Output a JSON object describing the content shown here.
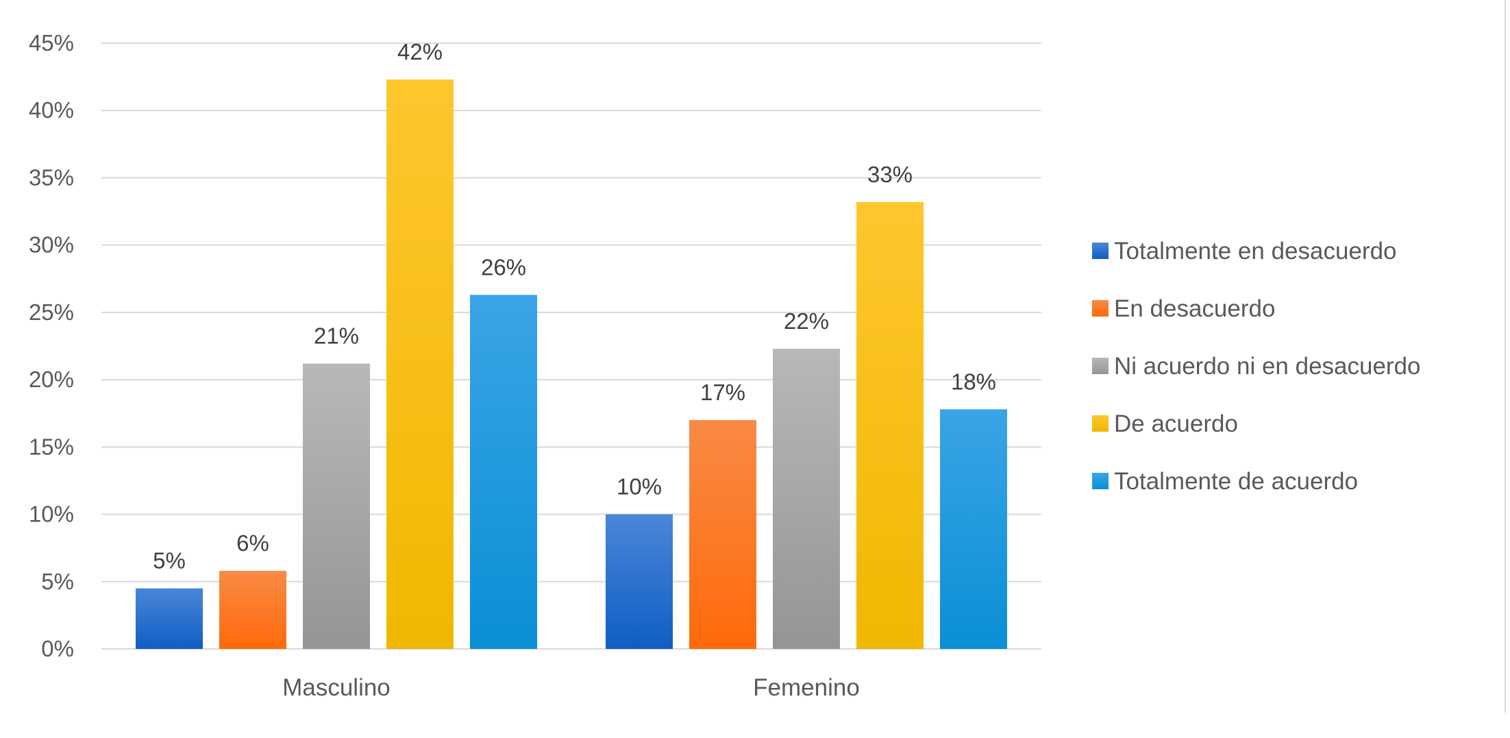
{
  "chart_data": {
    "type": "bar",
    "categories": [
      "Masculino",
      "Femenino"
    ],
    "series": [
      {
        "name": "Totalmente en desacuerdo",
        "values": [
          4.5,
          10
        ],
        "label": [
          "5%",
          "10%"
        ],
        "color_top": "#4a86d8",
        "color_bottom": "#0f5ec4"
      },
      {
        "name": "En desacuerdo",
        "values": [
          5.8,
          17
        ],
        "label": [
          "6%",
          "17%"
        ],
        "color_top": "#f98a45",
        "color_bottom": "#ff6a0a"
      },
      {
        "name": "Ni acuerdo ni en desacuerdo",
        "values": [
          21.2,
          22.3
        ],
        "label": [
          "21%",
          "22%"
        ],
        "color_top": "#b8b8b8",
        "color_bottom": "#959595"
      },
      {
        "name": "De acuerdo",
        "values": [
          42.3,
          33.2
        ],
        "label": [
          "42%",
          "33%"
        ],
        "color_top": "#ffc62e",
        "color_bottom": "#f0b800"
      },
      {
        "name": "Totalmente de acuerdo",
        "values": [
          26.3,
          17.8
        ],
        "label": [
          "26%",
          "18%"
        ],
        "color_top": "#3aa4e6",
        "color_bottom": "#0a8fd6"
      }
    ],
    "y_ticks": [
      "0%",
      "5%",
      "10%",
      "15%",
      "20%",
      "25%",
      "30%",
      "35%",
      "40%",
      "45%"
    ],
    "ylim": [
      0,
      45
    ],
    "grid": true,
    "legend": "right",
    "gridline_color": "#d9d9d9"
  }
}
